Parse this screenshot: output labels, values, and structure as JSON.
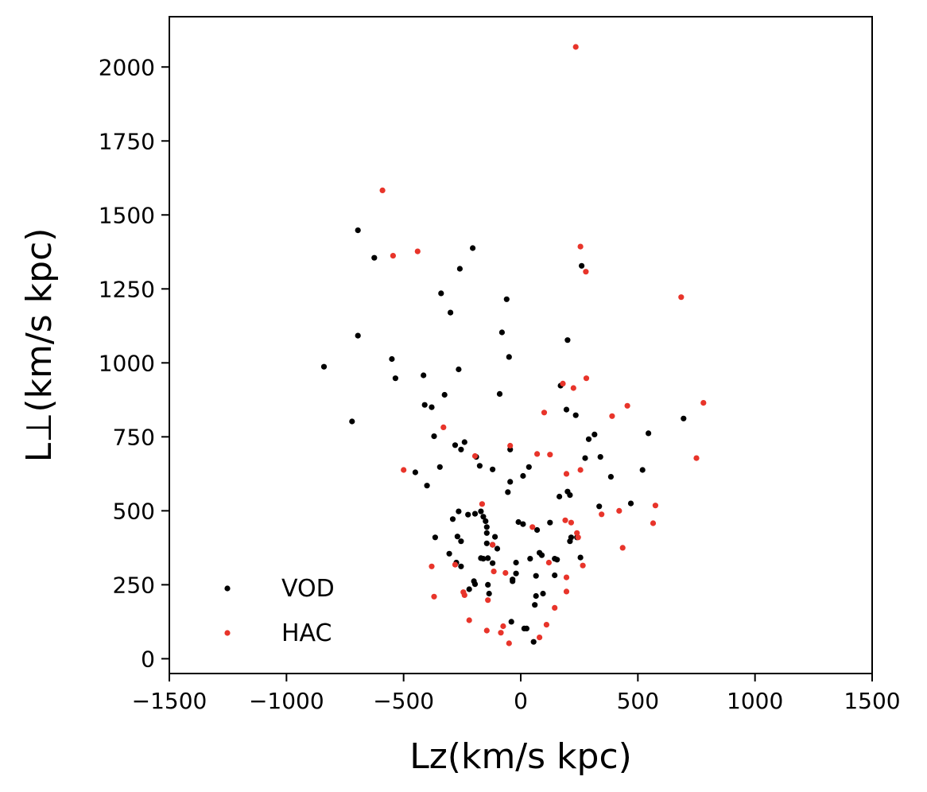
{
  "chart_data": {
    "type": "scatter",
    "title": "",
    "xlabel": "Lz(km/s kpc)",
    "ylabel": "L⊥(km/s kpc)",
    "xlim": [
      -1500,
      1500
    ],
    "ylim": [
      -50,
      2170
    ],
    "xticks": [
      -1500,
      -1000,
      -500,
      0,
      500,
      1000,
      1500
    ],
    "xtick_labels": [
      "−1500",
      "−1000",
      "−500",
      "0",
      "500",
      "1000",
      "1500"
    ],
    "yticks": [
      0,
      250,
      500,
      750,
      1000,
      1250,
      1500,
      1750,
      2000
    ],
    "ytick_labels": [
      "0",
      "250",
      "500",
      "750",
      "1000",
      "1250",
      "1500",
      "1750",
      "2000"
    ],
    "grid": false,
    "legend": "lower-left",
    "series": [
      {
        "name": "VOD",
        "color": "#000000",
        "points": [
          [
            -840,
            987
          ],
          [
            -720,
            802
          ],
          [
            -695,
            1448
          ],
          [
            -695,
            1092
          ],
          [
            -625,
            1355
          ],
          [
            -550,
            1013
          ],
          [
            -535,
            948
          ],
          [
            -450,
            630
          ],
          [
            -415,
            958
          ],
          [
            -410,
            858
          ],
          [
            -400,
            585
          ],
          [
            -380,
            850
          ],
          [
            -370,
            752
          ],
          [
            -365,
            410
          ],
          [
            -345,
            648
          ],
          [
            -340,
            1235
          ],
          [
            -325,
            892
          ],
          [
            -305,
            355
          ],
          [
            -300,
            1170
          ],
          [
            -290,
            472
          ],
          [
            -280,
            722
          ],
          [
            -275,
            325
          ],
          [
            -270,
            413
          ],
          [
            -265,
            978
          ],
          [
            -265,
            498
          ],
          [
            -260,
            1318
          ],
          [
            -255,
            707
          ],
          [
            -255,
            397
          ],
          [
            -255,
            312
          ],
          [
            -240,
            732
          ],
          [
            -225,
            487
          ],
          [
            -220,
            235
          ],
          [
            -205,
            1388
          ],
          [
            -200,
            262
          ],
          [
            -195,
            490
          ],
          [
            -195,
            252
          ],
          [
            -190,
            682
          ],
          [
            -175,
            652
          ],
          [
            -170,
            498
          ],
          [
            -170,
            340
          ],
          [
            -160,
            480
          ],
          [
            -160,
            338
          ],
          [
            -150,
            465
          ],
          [
            -145,
            445
          ],
          [
            -145,
            425
          ],
          [
            -145,
            390
          ],
          [
            -140,
            340
          ],
          [
            -140,
            250
          ],
          [
            -135,
            220
          ],
          [
            -120,
            640
          ],
          [
            -120,
            385
          ],
          [
            -120,
            323
          ],
          [
            -110,
            412
          ],
          [
            -100,
            372
          ],
          [
            -90,
            895
          ],
          [
            -80,
            1103
          ],
          [
            -60,
            1215
          ],
          [
            -55,
            563
          ],
          [
            -50,
            1020
          ],
          [
            -45,
            707
          ],
          [
            -45,
            598
          ],
          [
            -40,
            125
          ],
          [
            -35,
            268
          ],
          [
            -35,
            262
          ],
          [
            -20,
            325
          ],
          [
            -20,
            288
          ],
          [
            -10,
            462
          ],
          [
            10,
            455
          ],
          [
            10,
            618
          ],
          [
            15,
            102
          ],
          [
            25,
            102
          ],
          [
            35,
            648
          ],
          [
            40,
            338
          ],
          [
            55,
            57
          ],
          [
            60,
            182
          ],
          [
            65,
            212
          ],
          [
            65,
            280
          ],
          [
            70,
            435
          ],
          [
            80,
            358
          ],
          [
            90,
            350
          ],
          [
            95,
            220
          ],
          [
            125,
            460
          ],
          [
            145,
            282
          ],
          [
            145,
            338
          ],
          [
            155,
            335
          ],
          [
            165,
            548
          ],
          [
            170,
            923
          ],
          [
            195,
            842
          ],
          [
            200,
            1077
          ],
          [
            200,
            565
          ],
          [
            210,
            553
          ],
          [
            210,
            397
          ],
          [
            215,
            410
          ],
          [
            235,
            823
          ],
          [
            240,
            410
          ],
          [
            255,
            342
          ],
          [
            260,
            1328
          ],
          [
            275,
            678
          ],
          [
            290,
            742
          ],
          [
            315,
            758
          ],
          [
            335,
            515
          ],
          [
            340,
            682
          ],
          [
            385,
            615
          ],
          [
            470,
            525
          ],
          [
            520,
            638
          ],
          [
            545,
            762
          ],
          [
            695,
            812
          ]
        ]
      },
      {
        "name": "HAC",
        "color": "#e8342a",
        "points": [
          [
            -590,
            1583
          ],
          [
            -545,
            1362
          ],
          [
            -500,
            638
          ],
          [
            -440,
            1377
          ],
          [
            -380,
            312
          ],
          [
            -370,
            210
          ],
          [
            -330,
            782
          ],
          [
            -280,
            318
          ],
          [
            -245,
            225
          ],
          [
            -240,
            215
          ],
          [
            -220,
            130
          ],
          [
            -195,
            685
          ],
          [
            -165,
            523
          ],
          [
            -145,
            95
          ],
          [
            -140,
            198
          ],
          [
            -120,
            385
          ],
          [
            -115,
            295
          ],
          [
            -85,
            88
          ],
          [
            -75,
            110
          ],
          [
            -65,
            290
          ],
          [
            -50,
            52
          ],
          [
            -45,
            720
          ],
          [
            50,
            445
          ],
          [
            70,
            692
          ],
          [
            80,
            72
          ],
          [
            100,
            832
          ],
          [
            110,
            115
          ],
          [
            120,
            325
          ],
          [
            125,
            690
          ],
          [
            145,
            172
          ],
          [
            180,
            930
          ],
          [
            190,
            468
          ],
          [
            195,
            625
          ],
          [
            195,
            275
          ],
          [
            195,
            227
          ],
          [
            215,
            460
          ],
          [
            225,
            915
          ],
          [
            235,
            2068
          ],
          [
            240,
            425
          ],
          [
            245,
            410
          ],
          [
            255,
            638
          ],
          [
            255,
            1393
          ],
          [
            265,
            315
          ],
          [
            278,
            1308
          ],
          [
            280,
            948
          ],
          [
            390,
            820
          ],
          [
            420,
            500
          ],
          [
            435,
            375
          ],
          [
            455,
            855
          ],
          [
            565,
            458
          ],
          [
            575,
            518
          ],
          [
            685,
            1222
          ],
          [
            750,
            678
          ],
          [
            780,
            865
          ],
          [
            345,
            488
          ]
        ]
      }
    ]
  }
}
